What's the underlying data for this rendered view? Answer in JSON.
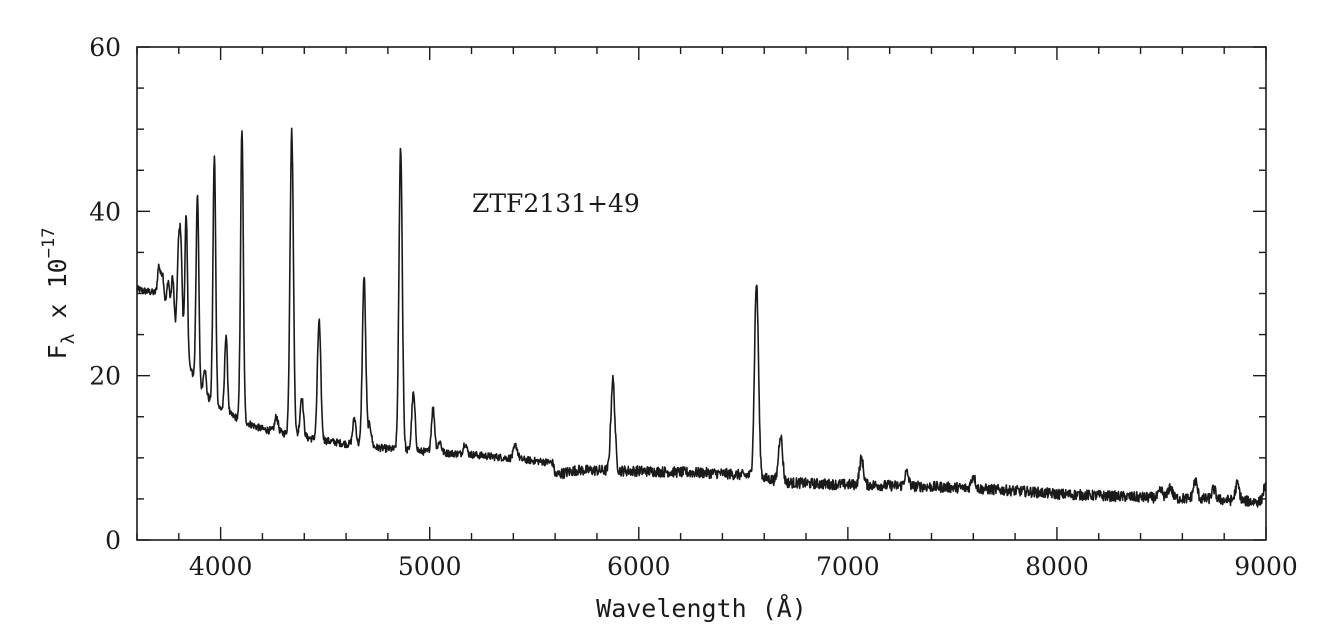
{
  "chart_data": {
    "type": "line",
    "annotation": "ZTF2131+49",
    "xlabel": "Wavelength (Å)",
    "ylabel": {
      "base": "F",
      "sub": "λ",
      "mid": " x 10",
      "sup": "−17"
    },
    "xlim": [
      3600,
      9000
    ],
    "ylim": [
      0,
      60
    ],
    "x_ticks": [
      4000,
      5000,
      6000,
      7000,
      8000,
      9000
    ],
    "x_tick_labels": [
      "4000",
      "5000",
      "6000",
      "7000",
      "8000",
      "9000"
    ],
    "x_minor_step": 200,
    "y_ticks": [
      0,
      20,
      40,
      60
    ],
    "y_tick_labels": [
      "0",
      "20",
      "40",
      "60"
    ],
    "y_minor_step": 5,
    "grid": false,
    "line_color": "#1a1a1a",
    "continuum": [
      [
        3600,
        30.5
      ],
      [
        3700,
        30.0
      ],
      [
        3750,
        28.0
      ],
      [
        3800,
        23.5
      ],
      [
        3850,
        21.0
      ],
      [
        3900,
        18.5
      ],
      [
        3950,
        17.0
      ],
      [
        4000,
        16.0
      ],
      [
        4050,
        15.2
      ],
      [
        4150,
        14.0
      ],
      [
        4200,
        13.5
      ],
      [
        4300,
        13.0
      ],
      [
        4400,
        12.5
      ],
      [
        4500,
        12.1
      ],
      [
        4600,
        11.7
      ],
      [
        4700,
        11.4
      ],
      [
        4800,
        11.1
      ],
      [
        4900,
        10.9
      ],
      [
        5000,
        10.7
      ],
      [
        5200,
        10.4
      ],
      [
        5400,
        9.9
      ],
      [
        5590,
        9.4
      ],
      [
        5600,
        7.9
      ],
      [
        5700,
        8.5
      ],
      [
        6000,
        8.4
      ],
      [
        6400,
        8.1
      ],
      [
        6550,
        7.8
      ],
      [
        6700,
        7.0
      ],
      [
        6900,
        6.8
      ],
      [
        7100,
        6.7
      ],
      [
        7500,
        6.4
      ],
      [
        7800,
        6.0
      ],
      [
        8000,
        5.6
      ],
      [
        8400,
        5.2
      ],
      [
        8700,
        5.0
      ],
      [
        9000,
        4.6
      ]
    ],
    "emission_lines": [
      {
        "x": 3705,
        "peak": 33.3
      },
      {
        "x": 3722,
        "peak": 32.5
      },
      {
        "x": 3750,
        "peak": 31.5
      },
      {
        "x": 3771,
        "peak": 32.0
      },
      {
        "x": 3798,
        "peak": 34.0
      },
      {
        "x": 3810,
        "peak": 35.2
      },
      {
        "x": 3835,
        "peak": 39.3
      },
      {
        "x": 3889,
        "peak": 42.2
      },
      {
        "x": 3924,
        "peak": 21.0
      },
      {
        "x": 3970,
        "peak": 46.7
      },
      {
        "x": 4026,
        "peak": 25.0
      },
      {
        "x": 4102,
        "peak": 50.0
      },
      {
        "x": 4267,
        "peak": 15.0
      },
      {
        "x": 4340,
        "peak": 49.8
      },
      {
        "x": 4388,
        "peak": 17.4
      },
      {
        "x": 4471,
        "peak": 26.7
      },
      {
        "x": 4640,
        "peak": 14.8
      },
      {
        "x": 4686,
        "peak": 32.0
      },
      {
        "x": 4713,
        "peak": 14.0
      },
      {
        "x": 4861,
        "peak": 47.7
      },
      {
        "x": 4922,
        "peak": 17.8
      },
      {
        "x": 5016,
        "peak": 16.0
      },
      {
        "x": 5048,
        "peak": 12.0
      },
      {
        "x": 5169,
        "peak": 11.8
      },
      {
        "x": 5411,
        "peak": 11.5
      },
      {
        "x": 5876,
        "peak": 19.5
      },
      {
        "x": 6563,
        "peak": 31.3
      },
      {
        "x": 6678,
        "peak": 12.8
      },
      {
        "x": 7065,
        "peak": 9.9
      },
      {
        "x": 7281,
        "peak": 8.2
      },
      {
        "x": 7600,
        "peak": 7.8
      },
      {
        "x": 8498,
        "peak": 6.0
      },
      {
        "x": 8542,
        "peak": 6.5
      },
      {
        "x": 8662,
        "peak": 7.2
      },
      {
        "x": 8750,
        "peak": 6.2
      },
      {
        "x": 8863,
        "peak": 6.8
      },
      {
        "x": 8996,
        "peak": 6.5
      }
    ]
  }
}
